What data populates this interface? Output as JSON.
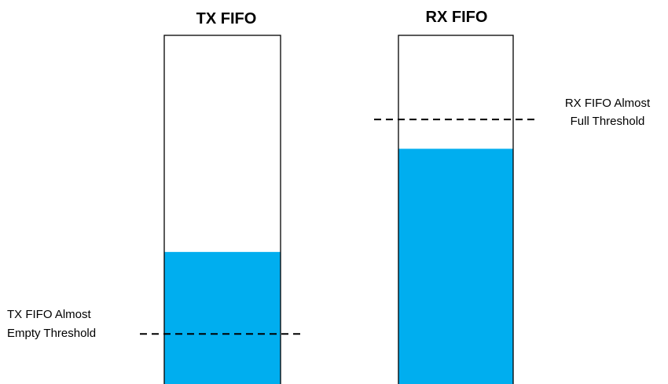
{
  "colors": {
    "fill": "#00aeef",
    "outline": "#000000",
    "threshold_line": "#000000"
  },
  "fifos": [
    {
      "title": "TX FIFO",
      "fill_level": 0.387,
      "threshold_level": 0.155,
      "threshold_label_line1": "TX FIFO Almost",
      "threshold_label_line2": "Empty Threshold"
    },
    {
      "title": "RX FIFO",
      "fill_level": 0.679,
      "threshold_level": 0.762,
      "threshold_label_line1": "RX FIFO Almost",
      "threshold_label_line2": "Full Threshold"
    }
  ]
}
